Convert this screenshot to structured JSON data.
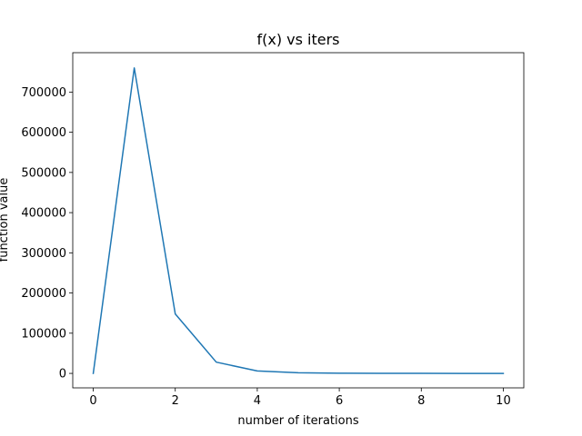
{
  "chart_data": {
    "type": "line",
    "title": "f(x) vs iters",
    "xlabel": "number of iterations",
    "ylabel": "function value",
    "xlim": [
      -0.5,
      10.5
    ],
    "ylim": [
      -36000,
      798000
    ],
    "xticks": [
      0,
      2,
      4,
      6,
      8,
      10
    ],
    "xtick_labels": [
      "0",
      "2",
      "4",
      "6",
      "8",
      "10"
    ],
    "yticks": [
      0,
      100000,
      200000,
      300000,
      400000,
      500000,
      600000,
      700000
    ],
    "ytick_labels": [
      "0",
      "100000",
      "200000",
      "300000",
      "400000",
      "500000",
      "600000",
      "700000"
    ],
    "grid": false,
    "legend": "none",
    "series": [
      {
        "color": "#1f77b4",
        "x": [
          0,
          1,
          2,
          3,
          4,
          5,
          6,
          7,
          8,
          9,
          10
        ],
        "y": [
          0,
          760000,
          148000,
          28000,
          6000,
          1500,
          400,
          100,
          30,
          10,
          5
        ]
      }
    ]
  }
}
